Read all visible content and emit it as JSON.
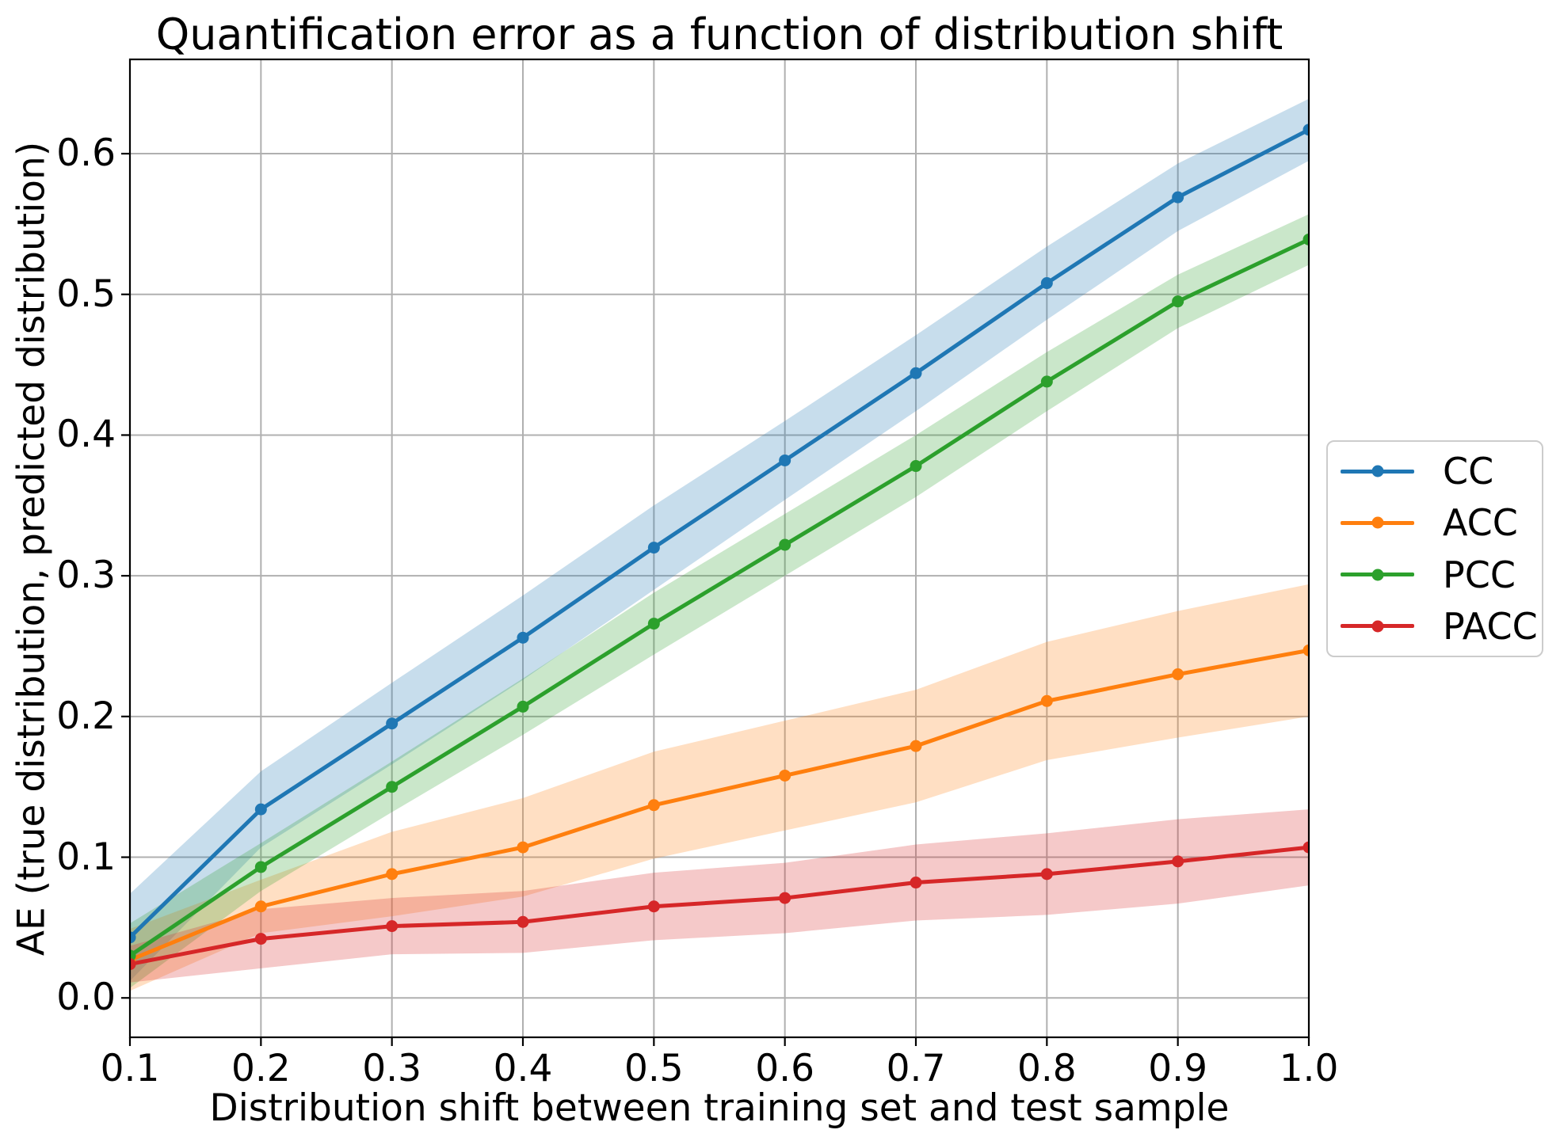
{
  "chart_data": {
    "type": "line",
    "title": "Quantification error as a function of distribution shift",
    "xlabel": "Distribution shift between training set and test sample",
    "ylabel": "AE (true distribution, predicted distribution)",
    "x": [
      0.1,
      0.2,
      0.3,
      0.4,
      0.5,
      0.6,
      0.7,
      0.8,
      0.9,
      1.0
    ],
    "x_ticks": [
      0.1,
      0.2,
      0.3,
      0.4,
      0.5,
      0.6,
      0.7,
      0.8,
      0.9,
      1.0
    ],
    "x_tick_labels": [
      "0.1",
      "0.2",
      "0.3",
      "0.4",
      "0.5",
      "0.6",
      "0.7",
      "0.8",
      "0.9",
      "1.0"
    ],
    "y_ticks": [
      0.0,
      0.1,
      0.2,
      0.3,
      0.4,
      0.5,
      0.6
    ],
    "y_tick_labels": [
      "0.0",
      "0.1",
      "0.2",
      "0.3",
      "0.4",
      "0.5",
      "0.6"
    ],
    "xlim": [
      0.1,
      1.0
    ],
    "ylim": [
      -0.028,
      0.667
    ],
    "grid": true,
    "grid_color": "#b0b0b0",
    "band_opacity": 0.25,
    "legend_position": "outside-right",
    "series": [
      {
        "name": "CC",
        "color": "#1f77b4",
        "values": [
          0.043,
          0.134,
          0.195,
          0.256,
          0.32,
          0.382,
          0.444,
          0.508,
          0.569,
          0.617
        ],
        "band_halfwidth": [
          0.031,
          0.027,
          0.029,
          0.03,
          0.03,
          0.028,
          0.027,
          0.026,
          0.024,
          0.022
        ]
      },
      {
        "name": "ACC",
        "color": "#ff7f0e",
        "values": [
          0.027,
          0.065,
          0.088,
          0.107,
          0.137,
          0.158,
          0.179,
          0.211,
          0.23,
          0.247
        ],
        "band_halfwidth": [
          0.022,
          0.019,
          0.03,
          0.035,
          0.038,
          0.039,
          0.04,
          0.042,
          0.045,
          0.047
        ]
      },
      {
        "name": "PCC",
        "color": "#2ca02c",
        "values": [
          0.03,
          0.093,
          0.15,
          0.207,
          0.266,
          0.322,
          0.378,
          0.438,
          0.495,
          0.539
        ],
        "band_halfwidth": [
          0.023,
          0.017,
          0.018,
          0.02,
          0.022,
          0.022,
          0.022,
          0.021,
          0.019,
          0.018
        ]
      },
      {
        "name": "PACC",
        "color": "#d62728",
        "values": [
          0.024,
          0.042,
          0.051,
          0.054,
          0.065,
          0.071,
          0.082,
          0.088,
          0.097,
          0.107
        ],
        "band_halfwidth": [
          0.013,
          0.021,
          0.02,
          0.022,
          0.024,
          0.025,
          0.027,
          0.029,
          0.03,
          0.027
        ]
      }
    ]
  }
}
